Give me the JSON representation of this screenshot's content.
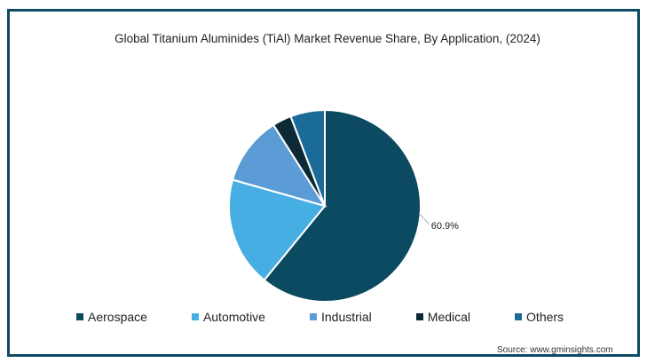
{
  "title": "Global Titanium Aluminides (TiAl) Market Revenue Share, By Application,  (2024)",
  "source": "Source: www.gminsights.com",
  "chart_data": {
    "type": "pie",
    "title": "Global Titanium Aluminides (TiAl) Market Revenue Share, By Application,  (2024)",
    "slices": [
      {
        "name": "Aerospace",
        "value": 60.9,
        "color": "#0b4a60",
        "label": "60.9%"
      },
      {
        "name": "Automotive",
        "value": 18.5,
        "color": "#47aee3",
        "label": ""
      },
      {
        "name": "Industrial",
        "value": 11.6,
        "color": "#5b9bd6",
        "label": ""
      },
      {
        "name": "Medical",
        "value": 3.2,
        "color": "#0b2a36",
        "label": ""
      },
      {
        "name": "Others",
        "value": 5.8,
        "color": "#1a6b97",
        "label": ""
      }
    ],
    "start_angle_deg": 0,
    "direction": "clockwise",
    "legend_position": "bottom"
  }
}
